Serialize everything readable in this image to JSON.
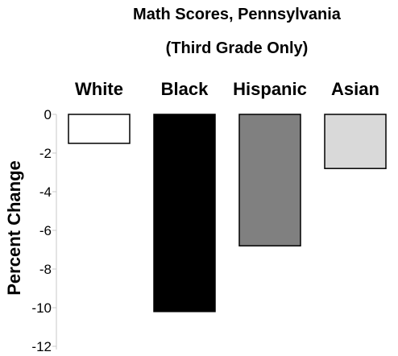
{
  "chart_data": {
    "type": "bar",
    "title": "Math Scores, Pennsylvania",
    "subtitle": "(Third Grade Only)",
    "ylabel": "Percent Change",
    "xlabel": "",
    "categories": [
      "White",
      "Black",
      "Hispanic",
      "Asian"
    ],
    "values": [
      -1.5,
      -10.2,
      -6.8,
      -2.8
    ],
    "colors": [
      "#ffffff",
      "#000000",
      "#808080",
      "#d9d9d9"
    ],
    "ylim": [
      -12,
      0
    ],
    "yticks": [
      0,
      -2,
      -4,
      -6,
      -8,
      -10,
      -12
    ],
    "ytick_labels": [
      "0",
      "-2",
      "-4",
      "-6",
      "-8",
      "-10",
      "-12"
    ],
    "category_position": "top",
    "grid": false,
    "legend": "none"
  }
}
